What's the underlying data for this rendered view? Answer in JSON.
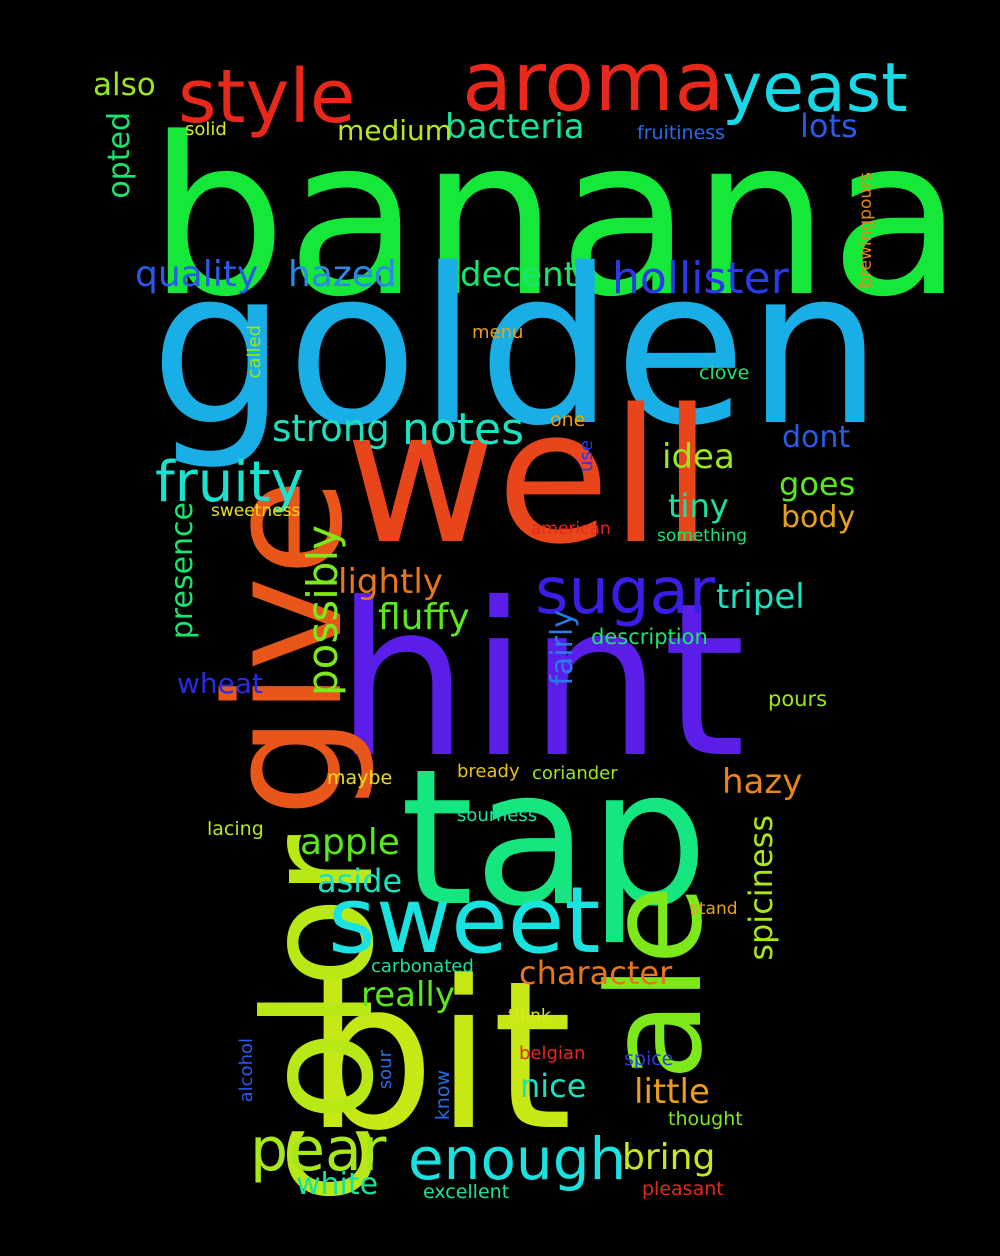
{
  "words": [
    {
      "text": "banana",
      "color": "#16e83a"
    },
    {
      "text": "golden",
      "color": "#19aee6"
    },
    {
      "text": "well",
      "color": "#e8451a"
    },
    {
      "text": "hint",
      "color": "#5a1ee8"
    },
    {
      "text": "tap",
      "color": "#16e680"
    },
    {
      "text": "bit",
      "color": "#c8e815"
    },
    {
      "text": "give",
      "color": "#e8561a"
    },
    {
      "text": "color",
      "color": "#b8e815"
    },
    {
      "text": "ale",
      "color": "#7de81a"
    },
    {
      "text": "aroma",
      "color": "#e8281a"
    },
    {
      "text": "sweet",
      "color": "#19e2e0"
    },
    {
      "text": "style",
      "color": "#e8281a"
    },
    {
      "text": "yeast",
      "color": "#19d8e6"
    },
    {
      "text": "sugar",
      "color": "#3a1ee8"
    },
    {
      "text": "fruity",
      "color": "#19e2d0"
    },
    {
      "text": "enough",
      "color": "#19e2e0"
    },
    {
      "text": "pear",
      "color": "#a8e81a"
    },
    {
      "text": "hollister",
      "color": "#2a3ae8"
    },
    {
      "text": "notes",
      "color": "#19e2c0"
    },
    {
      "text": "possibly",
      "color": "#7de81a"
    },
    {
      "text": "strong",
      "color": "#19e2c0"
    },
    {
      "text": "quality",
      "color": "#2a5ae8"
    },
    {
      "text": "hazed",
      "color": "#2a8ae8"
    },
    {
      "text": "decent",
      "color": "#19e670"
    },
    {
      "text": "bacteria",
      "color": "#19e2a0"
    },
    {
      "text": "lots",
      "color": "#2a5ae8"
    },
    {
      "text": "medium",
      "color": "#b8e81a"
    },
    {
      "text": "also",
      "color": "#9ae81a"
    },
    {
      "text": "opted",
      "color": "#19e670"
    },
    {
      "text": "presence",
      "color": "#19e670"
    },
    {
      "text": "spiciness",
      "color": "#a8e81a"
    },
    {
      "text": "fluffy",
      "color": "#5ae81a"
    },
    {
      "text": "lightly",
      "color": "#e8761a"
    },
    {
      "text": "tripel",
      "color": "#19e2c0"
    },
    {
      "text": "idea",
      "color": "#9ae81a"
    },
    {
      "text": "tiny",
      "color": "#19e2a0"
    },
    {
      "text": "goes",
      "color": "#5ae81a"
    },
    {
      "text": "body",
      "color": "#e8a01a"
    },
    {
      "text": "dont",
      "color": "#2a5ae8"
    },
    {
      "text": "apple",
      "color": "#5ae81a"
    },
    {
      "text": "aside",
      "color": "#19e2c0"
    },
    {
      "text": "wheat",
      "color": "#2a2ae8"
    },
    {
      "text": "hazy",
      "color": "#e8861a"
    },
    {
      "text": "character",
      "color": "#e8761a"
    },
    {
      "text": "really",
      "color": "#5ae81a"
    },
    {
      "text": "nice",
      "color": "#19e2c0"
    },
    {
      "text": "little",
      "color": "#e8a01a"
    },
    {
      "text": "bring",
      "color": "#c8e81a"
    },
    {
      "text": "white",
      "color": "#19e2a0"
    },
    {
      "text": "fairly",
      "color": "#2a7ae8"
    },
    {
      "text": "fruitiness",
      "color": "#2a6ae8"
    },
    {
      "text": "solid",
      "color": "#d8e81a"
    },
    {
      "text": "menu",
      "color": "#e8a01a"
    },
    {
      "text": "called",
      "color": "#9ae81a"
    },
    {
      "text": "clove",
      "color": "#19e670"
    },
    {
      "text": "one",
      "color": "#e8a01a"
    },
    {
      "text": "use",
      "color": "#2a3ae8"
    },
    {
      "text": "sweetness",
      "color": "#e8e01a"
    },
    {
      "text": "american",
      "color": "#e8281a"
    },
    {
      "text": "something",
      "color": "#19e670"
    },
    {
      "text": "description",
      "color": "#19e670"
    },
    {
      "text": "pours",
      "color": "#9ae81a"
    },
    {
      "text": "maybe",
      "color": "#e8e01a"
    },
    {
      "text": "bready",
      "color": "#e8c01a"
    },
    {
      "text": "coriander",
      "color": "#9ae81a"
    },
    {
      "text": "lacing",
      "color": "#b8e81a"
    },
    {
      "text": "sourness",
      "color": "#19e2a0"
    },
    {
      "text": "stand",
      "color": "#e8a01a"
    },
    {
      "text": "carbonated",
      "color": "#19e2a0"
    },
    {
      "text": "think",
      "color": "#d8e81a"
    },
    {
      "text": "belgian",
      "color": "#e8281a"
    },
    {
      "text": "spice",
      "color": "#2a3ae8"
    },
    {
      "text": "thought",
      "color": "#7de81a"
    },
    {
      "text": "excellent",
      "color": "#19e2a0"
    },
    {
      "text": "pleasant",
      "color": "#e8281a"
    },
    {
      "text": "alcohol",
      "color": "#2a5ae8"
    },
    {
      "text": "sour",
      "color": "#2a6ae8"
    },
    {
      "text": "know",
      "color": "#2a6ae8"
    },
    {
      "text": "brewingpours",
      "color": "#e8861a"
    }
  ]
}
